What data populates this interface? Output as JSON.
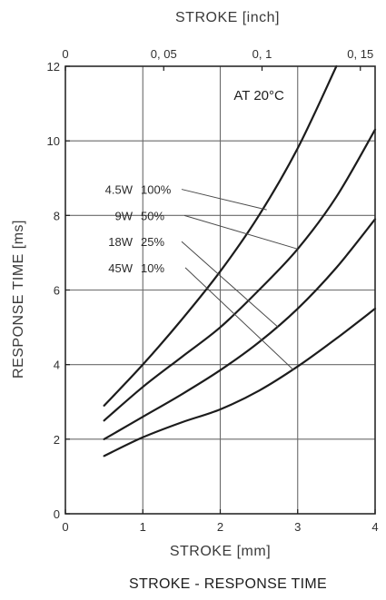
{
  "chart_data": {
    "type": "line",
    "title": "STROKE - RESPONSE TIME",
    "annotation": "AT 20°C",
    "xlabel": "STROKE [mm]",
    "ylabel": "RESPONSE TIME [ms]",
    "x2label": "STROKE [inch]",
    "xlim": [
      0,
      4
    ],
    "ylim": [
      0,
      12
    ],
    "x2lim": [
      0,
      0.1575
    ],
    "x_ticks": [
      "0",
      "1",
      "2",
      "3",
      "4"
    ],
    "y_ticks": [
      "0",
      "2",
      "4",
      "6",
      "8",
      "10",
      "12"
    ],
    "x2_ticks": [
      {
        "label": "0",
        "value": 0
      },
      {
        "label": "0, 05",
        "value": 0.05
      },
      {
        "label": "0, 1",
        "value": 0.1
      },
      {
        "label": "0, 15",
        "value": 0.15
      }
    ],
    "grid": true,
    "legend": [
      {
        "power": "4.5W",
        "duty": "100%"
      },
      {
        "power": "9W",
        "duty": "50%"
      },
      {
        "power": "18W",
        "duty": "25%"
      },
      {
        "power": "45W",
        "duty": "10%"
      }
    ],
    "series": [
      {
        "name": "4.5W 100%",
        "x": [
          0.5,
          1,
          1.5,
          2,
          2.5,
          3,
          3.5
        ],
        "y": [
          2.9,
          4.0,
          5.2,
          6.5,
          8.0,
          9.8,
          12.0
        ]
      },
      {
        "name": "9W 50%",
        "x": [
          0.5,
          1,
          1.5,
          2,
          2.5,
          3,
          3.5,
          4
        ],
        "y": [
          2.5,
          3.4,
          4.2,
          5.0,
          6.0,
          7.1,
          8.5,
          10.3
        ]
      },
      {
        "name": "18W 25%",
        "x": [
          0.5,
          1,
          1.5,
          2,
          2.5,
          3,
          3.5,
          4
        ],
        "y": [
          2.0,
          2.6,
          3.2,
          3.85,
          4.6,
          5.5,
          6.6,
          7.9
        ]
      },
      {
        "name": "45W 10%",
        "x": [
          0.5,
          1,
          1.5,
          2,
          2.5,
          3,
          3.5,
          4
        ],
        "y": [
          1.55,
          2.05,
          2.45,
          2.8,
          3.3,
          3.95,
          4.7,
          5.5
        ]
      }
    ],
    "leader_targets": [
      {
        "x": 2.6,
        "y": 8.15
      },
      {
        "x": 3.0,
        "y": 7.1
      },
      {
        "x": 2.75,
        "y": 5.0
      },
      {
        "x": 2.95,
        "y": 3.85
      }
    ],
    "style": {
      "line_color": "#1c1c1c",
      "grid_color": "#6a6a6a",
      "text_color": "#2b2b2b",
      "background": "#ffffff"
    }
  }
}
